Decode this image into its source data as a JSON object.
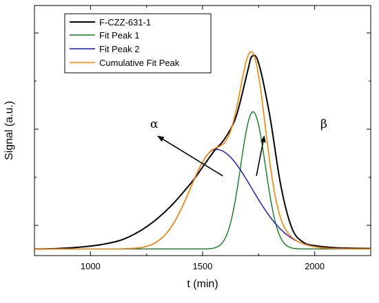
{
  "chart_data": {
    "type": "line",
    "title": "",
    "xlabel": "t (min)",
    "ylabel": "Signal  (a.u.)",
    "xlim": [
      750,
      2250
    ],
    "ylim": [
      -0.03,
      1.1
    ],
    "x_ticks": [
      {
        "value": 1000,
        "label": "1000"
      },
      {
        "value": 1500,
        "label": "1500"
      },
      {
        "value": 2000,
        "label": "2000"
      }
    ],
    "y_tick_labels_shown": false,
    "grid": false,
    "legend_position": "top-left",
    "series": [
      {
        "name": "F-CZZ-631-1",
        "color": "#000000",
        "points": [
          [
            750,
            0.0
          ],
          [
            850,
            0.002
          ],
          [
            950,
            0.008
          ],
          [
            1050,
            0.02
          ],
          [
            1150,
            0.045
          ],
          [
            1250,
            0.1
          ],
          [
            1350,
            0.185
          ],
          [
            1450,
            0.3
          ],
          [
            1500,
            0.37
          ],
          [
            1550,
            0.44
          ],
          [
            1600,
            0.5
          ],
          [
            1650,
            0.6
          ],
          [
            1700,
            0.8
          ],
          [
            1720,
            0.87
          ],
          [
            1750,
            0.84
          ],
          [
            1800,
            0.6
          ],
          [
            1850,
            0.28
          ],
          [
            1900,
            0.09
          ],
          [
            1950,
            0.03
          ],
          [
            2000,
            0.015
          ],
          [
            2100,
            0.005
          ],
          [
            2250,
            0.002
          ]
        ]
      },
      {
        "name": "Fit Peak 1",
        "color": "#0a7d1a",
        "peak": {
          "center": 1725,
          "amplitude": 0.62,
          "sigma": 55
        }
      },
      {
        "name": "Fit Peak 2",
        "color": "#1010c0",
        "peak": {
          "center": 1560,
          "amplitude": 0.45,
          "sigma_left": 115,
          "sigma_right": 160
        }
      },
      {
        "name": "Cumulative Fit Peak",
        "color": "#ff8000",
        "derived": "sum of Fit Peak 1 and Fit Peak 2"
      }
    ],
    "annotations": [
      {
        "text": "α",
        "arrow_from": [
          1590,
          0.33
        ],
        "arrow_to": [
          1300,
          0.51
        ]
      },
      {
        "text": "β",
        "arrow_from": [
          1740,
          0.33
        ],
        "arrow_to": [
          1775,
          0.51
        ]
      }
    ]
  }
}
